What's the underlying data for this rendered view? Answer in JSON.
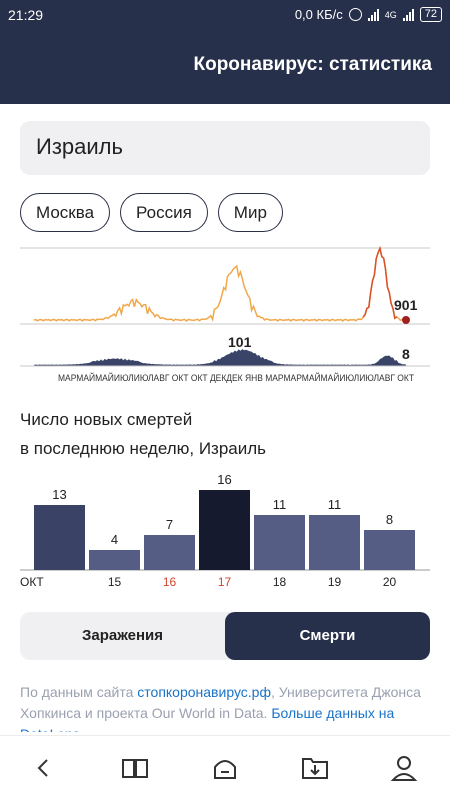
{
  "status_bar": {
    "time": "21:29",
    "net_speed": "0,0 КБ/с",
    "network_type": "4G",
    "battery": "72"
  },
  "header": {
    "title": "Коронавирус: статистика"
  },
  "country_field": {
    "value": "Израиль"
  },
  "region_chips": [
    "Москва",
    "Россия",
    "Мир"
  ],
  "sparkline": {
    "cases_current_label": "901",
    "deaths_peak_label": "101",
    "deaths_current_label": "8",
    "month_axis": "МАРМАЙМАЙИЮЛИЮЛАВГ ОКТ ОКТ ДЕКДЕК ЯНВ МАРМАРМАЙМАЙИЮЛИЮЛАВГ ОКТ",
    "cases_color": "#f0a84a",
    "cases_peak_color": "#d9502a",
    "deaths_color": "#3a4468"
  },
  "section": {
    "title_line1": "Число новых смертей",
    "title_line2": "в последнюю неделю, Израиль"
  },
  "chart_data": {
    "type": "bar",
    "categories": [
      "ОКТ",
      "15",
      "16",
      "17",
      "18",
      "19",
      "20"
    ],
    "values": [
      13,
      4,
      7,
      16,
      11,
      11,
      8
    ],
    "highlighted_categories": [
      "16",
      "17"
    ],
    "selected_category": "17",
    "ylim": [
      0,
      16
    ],
    "grid": false,
    "legend": "none"
  },
  "tabs": {
    "left": "Заражения",
    "right": "Смерти",
    "active": "Смерти"
  },
  "source": {
    "prefix": "По данным сайта ",
    "link1": "стопкоронавирус.рф",
    "middle": ", Университета Джонса Хопкинса и проекта Our World in Data. ",
    "link2": "Больше данных на DataLens"
  },
  "nav": [
    "back-icon",
    "book-icon",
    "home-icon",
    "download-folder-icon",
    "profile-icon"
  ]
}
